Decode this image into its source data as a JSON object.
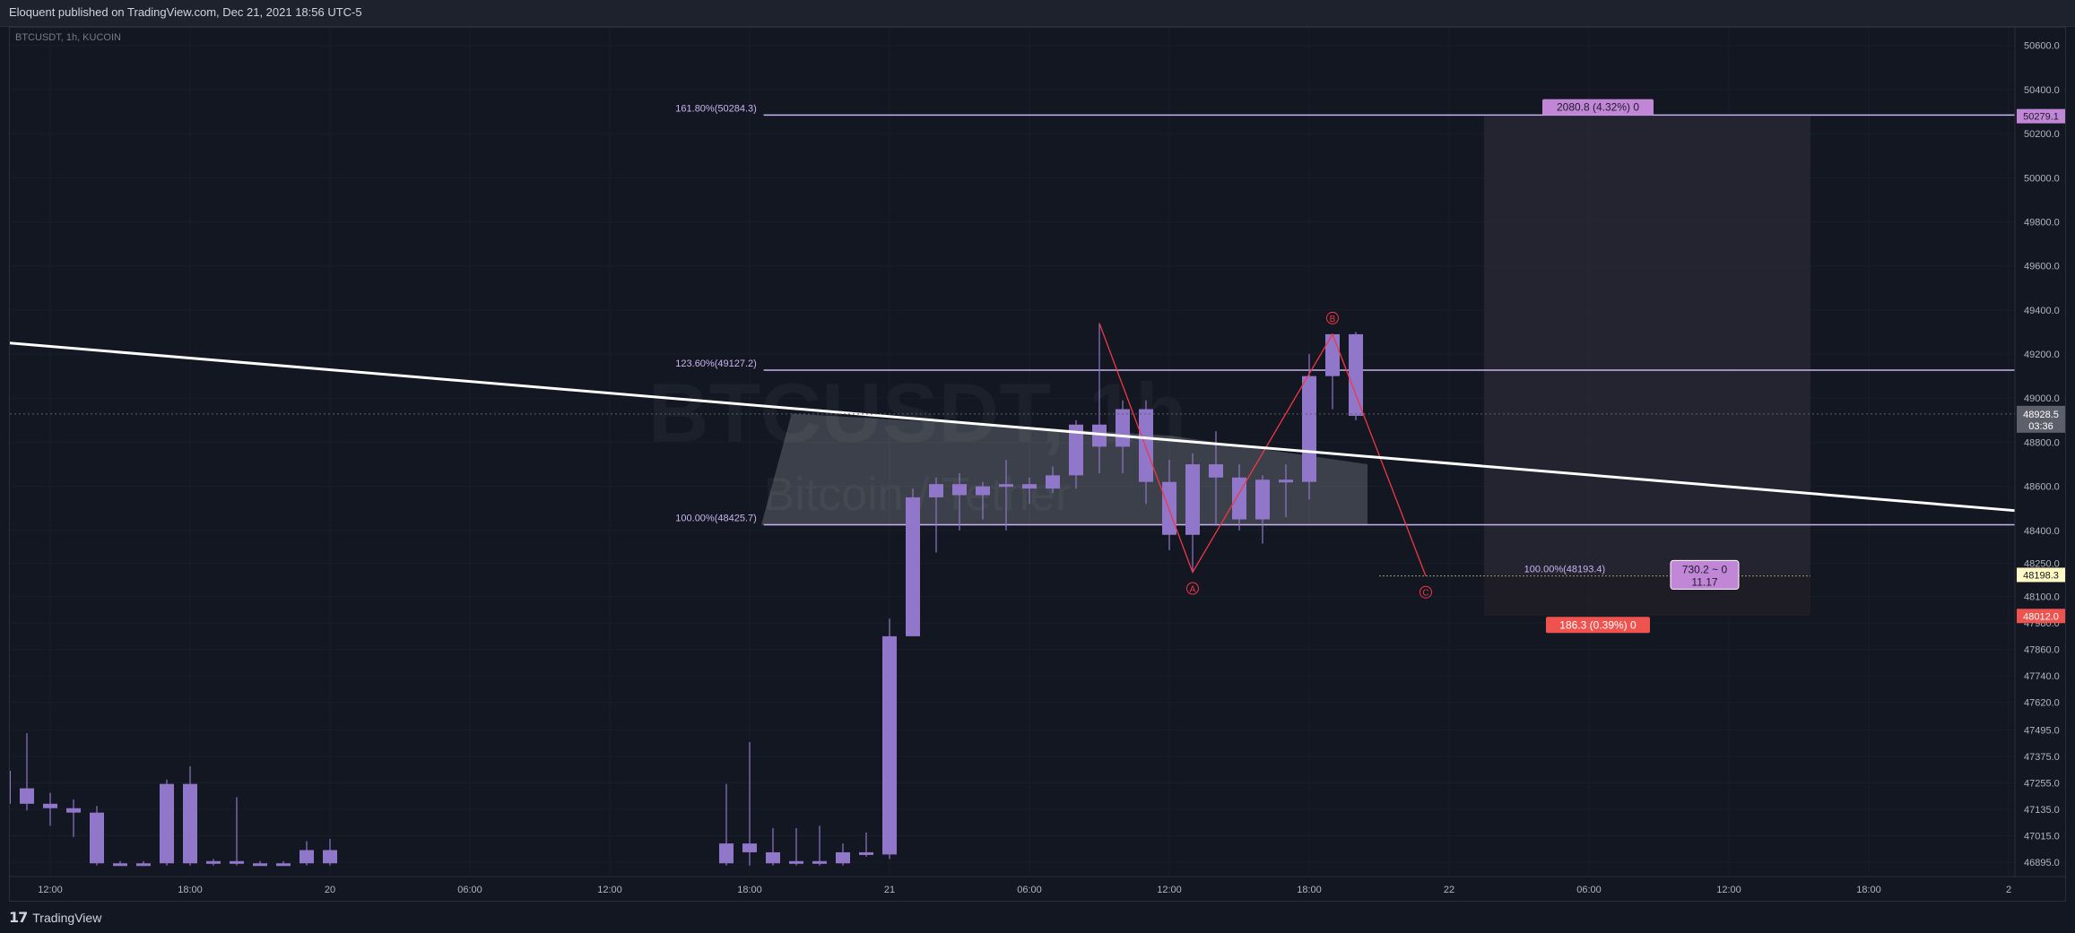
{
  "header": {
    "publish_line": "Eloquent published on TradingView.com, Dec 21, 2021 18:56 UTC-5"
  },
  "footer": {
    "logo_mark": "17",
    "brand": "TradingView"
  },
  "chart_data": {
    "type": "candlestick",
    "symbol_label": "BTCUSDT, 1h, KUCOIN",
    "watermark_symbol": "BTCUSDT, 1h",
    "watermark_desc": "Bitcoin / Tether",
    "ylim": [
      46830,
      50680
    ],
    "y_ticks": [
      "50600.0",
      "50400.0",
      "50200.0",
      "50000.0",
      "49800.0",
      "49600.0",
      "49400.0",
      "49200.0",
      "49000.0",
      "48800.0",
      "48600.0",
      "48400.0",
      "48250.0",
      "48100.0",
      "47980.0",
      "47860.0",
      "47740.0",
      "47620.0",
      "47495.0",
      "47375.0",
      "47255.0",
      "47135.0",
      "47015.0",
      "46895.0"
    ],
    "x_ticks": [
      "12:00",
      "18:00",
      "20",
      "06:00",
      "12:00",
      "18:00",
      "21",
      "06:00",
      "12:00",
      "18:00",
      "22",
      "06:00",
      "12:00",
      "18:00",
      "2"
    ],
    "x_tick_bar_index": [
      0,
      6,
      12,
      18,
      24,
      30,
      36,
      42,
      48,
      54,
      60,
      66,
      72,
      78,
      84
    ],
    "candles": [
      {
        "i": -2,
        "o": 47310,
        "h": 47330,
        "l": 47160,
        "c": 47160
      },
      {
        "i": -1,
        "o": 47230,
        "h": 47480,
        "l": 47130,
        "c": 47160
      },
      {
        "i": 0,
        "o": 47160,
        "h": 47210,
        "l": 47060,
        "c": 47140
      },
      {
        "i": 1,
        "o": 47140,
        "h": 47180,
        "l": 47010,
        "c": 47120
      },
      {
        "i": 2,
        "o": 47120,
        "h": 47150,
        "l": 46880,
        "c": 46890
      },
      {
        "i": 3,
        "o": 46890,
        "h": 46900,
        "l": 46880,
        "c": 46890
      },
      {
        "i": 4,
        "o": 46890,
        "h": 46900,
        "l": 46880,
        "c": 46890
      },
      {
        "i": 5,
        "o": 46890,
        "h": 47270,
        "l": 46880,
        "c": 47250
      },
      {
        "i": 6,
        "o": 47250,
        "h": 47330,
        "l": 46880,
        "c": 46890
      },
      {
        "i": 7,
        "o": 46890,
        "h": 46910,
        "l": 46880,
        "c": 46900
      },
      {
        "i": 8,
        "o": 46900,
        "h": 47190,
        "l": 46880,
        "c": 46890
      },
      {
        "i": 9,
        "o": 46890,
        "h": 46900,
        "l": 46880,
        "c": 46890
      },
      {
        "i": 10,
        "o": 46890,
        "h": 46900,
        "l": 46880,
        "c": 46890
      },
      {
        "i": 11,
        "o": 46890,
        "h": 46990,
        "l": 46880,
        "c": 46950
      },
      {
        "i": 12,
        "o": 46950,
        "h": 47000,
        "l": 46880,
        "c": 46890
      },
      {
        "i": 29,
        "o": 46890,
        "h": 47250,
        "l": 46880,
        "c": 46980
      },
      {
        "i": 30,
        "o": 46980,
        "h": 47440,
        "l": 46880,
        "c": 46940
      },
      {
        "i": 31,
        "o": 46940,
        "h": 47050,
        "l": 46880,
        "c": 46890
      },
      {
        "i": 32,
        "o": 46890,
        "h": 47050,
        "l": 46880,
        "c": 46900
      },
      {
        "i": 33,
        "o": 46900,
        "h": 47060,
        "l": 46880,
        "c": 46890
      },
      {
        "i": 34,
        "o": 46890,
        "h": 46980,
        "l": 46880,
        "c": 46940
      },
      {
        "i": 35,
        "o": 46940,
        "h": 47030,
        "l": 46920,
        "c": 46930
      },
      {
        "i": 36,
        "o": 46930,
        "h": 48000,
        "l": 46910,
        "c": 47920
      },
      {
        "i": 37,
        "o": 47920,
        "h": 48590,
        "l": 47920,
        "c": 48550
      },
      {
        "i": 38,
        "o": 48550,
        "h": 48640,
        "l": 48300,
        "c": 48610
      },
      {
        "i": 39,
        "o": 48610,
        "h": 48660,
        "l": 48400,
        "c": 48560
      },
      {
        "i": 40,
        "o": 48560,
        "h": 48620,
        "l": 48450,
        "c": 48600
      },
      {
        "i": 41,
        "o": 48600,
        "h": 48720,
        "l": 48400,
        "c": 48610
      },
      {
        "i": 42,
        "o": 48610,
        "h": 48640,
        "l": 48520,
        "c": 48590
      },
      {
        "i": 43,
        "o": 48590,
        "h": 48690,
        "l": 48570,
        "c": 48650
      },
      {
        "i": 44,
        "o": 48650,
        "h": 48900,
        "l": 48590,
        "c": 48880
      },
      {
        "i": 45,
        "o": 48880,
        "h": 49340,
        "l": 48660,
        "c": 48780
      },
      {
        "i": 46,
        "o": 48780,
        "h": 48990,
        "l": 48660,
        "c": 48950
      },
      {
        "i": 47,
        "o": 48950,
        "h": 48990,
        "l": 48520,
        "c": 48620
      },
      {
        "i": 48,
        "o": 48620,
        "h": 48720,
        "l": 48310,
        "c": 48380
      },
      {
        "i": 49,
        "o": 48380,
        "h": 48750,
        "l": 48210,
        "c": 48700
      },
      {
        "i": 50,
        "o": 48700,
        "h": 48850,
        "l": 48420,
        "c": 48640
      },
      {
        "i": 51,
        "o": 48640,
        "h": 48700,
        "l": 48400,
        "c": 48450
      },
      {
        "i": 52,
        "o": 48450,
        "h": 48650,
        "l": 48340,
        "c": 48630
      },
      {
        "i": 53,
        "o": 48630,
        "h": 48700,
        "l": 48460,
        "c": 48620
      },
      {
        "i": 54,
        "o": 48620,
        "h": 49200,
        "l": 48540,
        "c": 49100
      },
      {
        "i": 55,
        "o": 49100,
        "h": 49290,
        "l": 48950,
        "c": 49290
      },
      {
        "i": 56,
        "o": 49290,
        "h": 49300,
        "l": 48900,
        "c": 48920
      }
    ],
    "fib_levels": [
      {
        "label": "161.80%(50284.3)",
        "price": 50284.3
      },
      {
        "label": "123.60%(49127.2)",
        "price": 49127.2
      },
      {
        "label": "100.00%(48425.7)",
        "price": 48425.7
      },
      {
        "label": "100.00%(48193.4)",
        "price": 48193.4
      }
    ],
    "wave_points": [
      {
        "label": "",
        "bar": 45,
        "price": 49340
      },
      {
        "label": "A",
        "bar": 49,
        "price": 48210
      },
      {
        "label": "B",
        "bar": 55,
        "price": 49290
      },
      {
        "label": "C",
        "bar": 59,
        "price": 48193
      }
    ],
    "trendline": {
      "start_price": 49250,
      "end_price": 48490
    },
    "position_box": {
      "target_label": "2080.8 (4.32%) 0",
      "stop_label": "186.3 (0.39%) 0",
      "center_label_1": "730.2 ~ 0",
      "center_label_2": "11.17",
      "target_price": 50279.1,
      "entry_price": 48198.3,
      "stop_price": 48012.0
    },
    "price_badges": [
      {
        "text": "50279.1",
        "price": 50279.1,
        "kind": "target"
      },
      {
        "text": "48928.5",
        "sub": "03:36",
        "price": 48928.5,
        "kind": "last"
      },
      {
        "text": "48198.3",
        "price": 48198.3,
        "kind": "entry"
      },
      {
        "text": "48012.0",
        "price": 48012.0,
        "kind": "stop"
      }
    ],
    "colors": {
      "background": "#131722",
      "candle": "#9177c9",
      "fib_line": "#c9b3f0",
      "wave": "#f23645",
      "trendline": "#ffffff",
      "target_badge": "#c186d5",
      "stop_badge": "#ef5350",
      "entry_badge": "#fff9c4"
    }
  }
}
